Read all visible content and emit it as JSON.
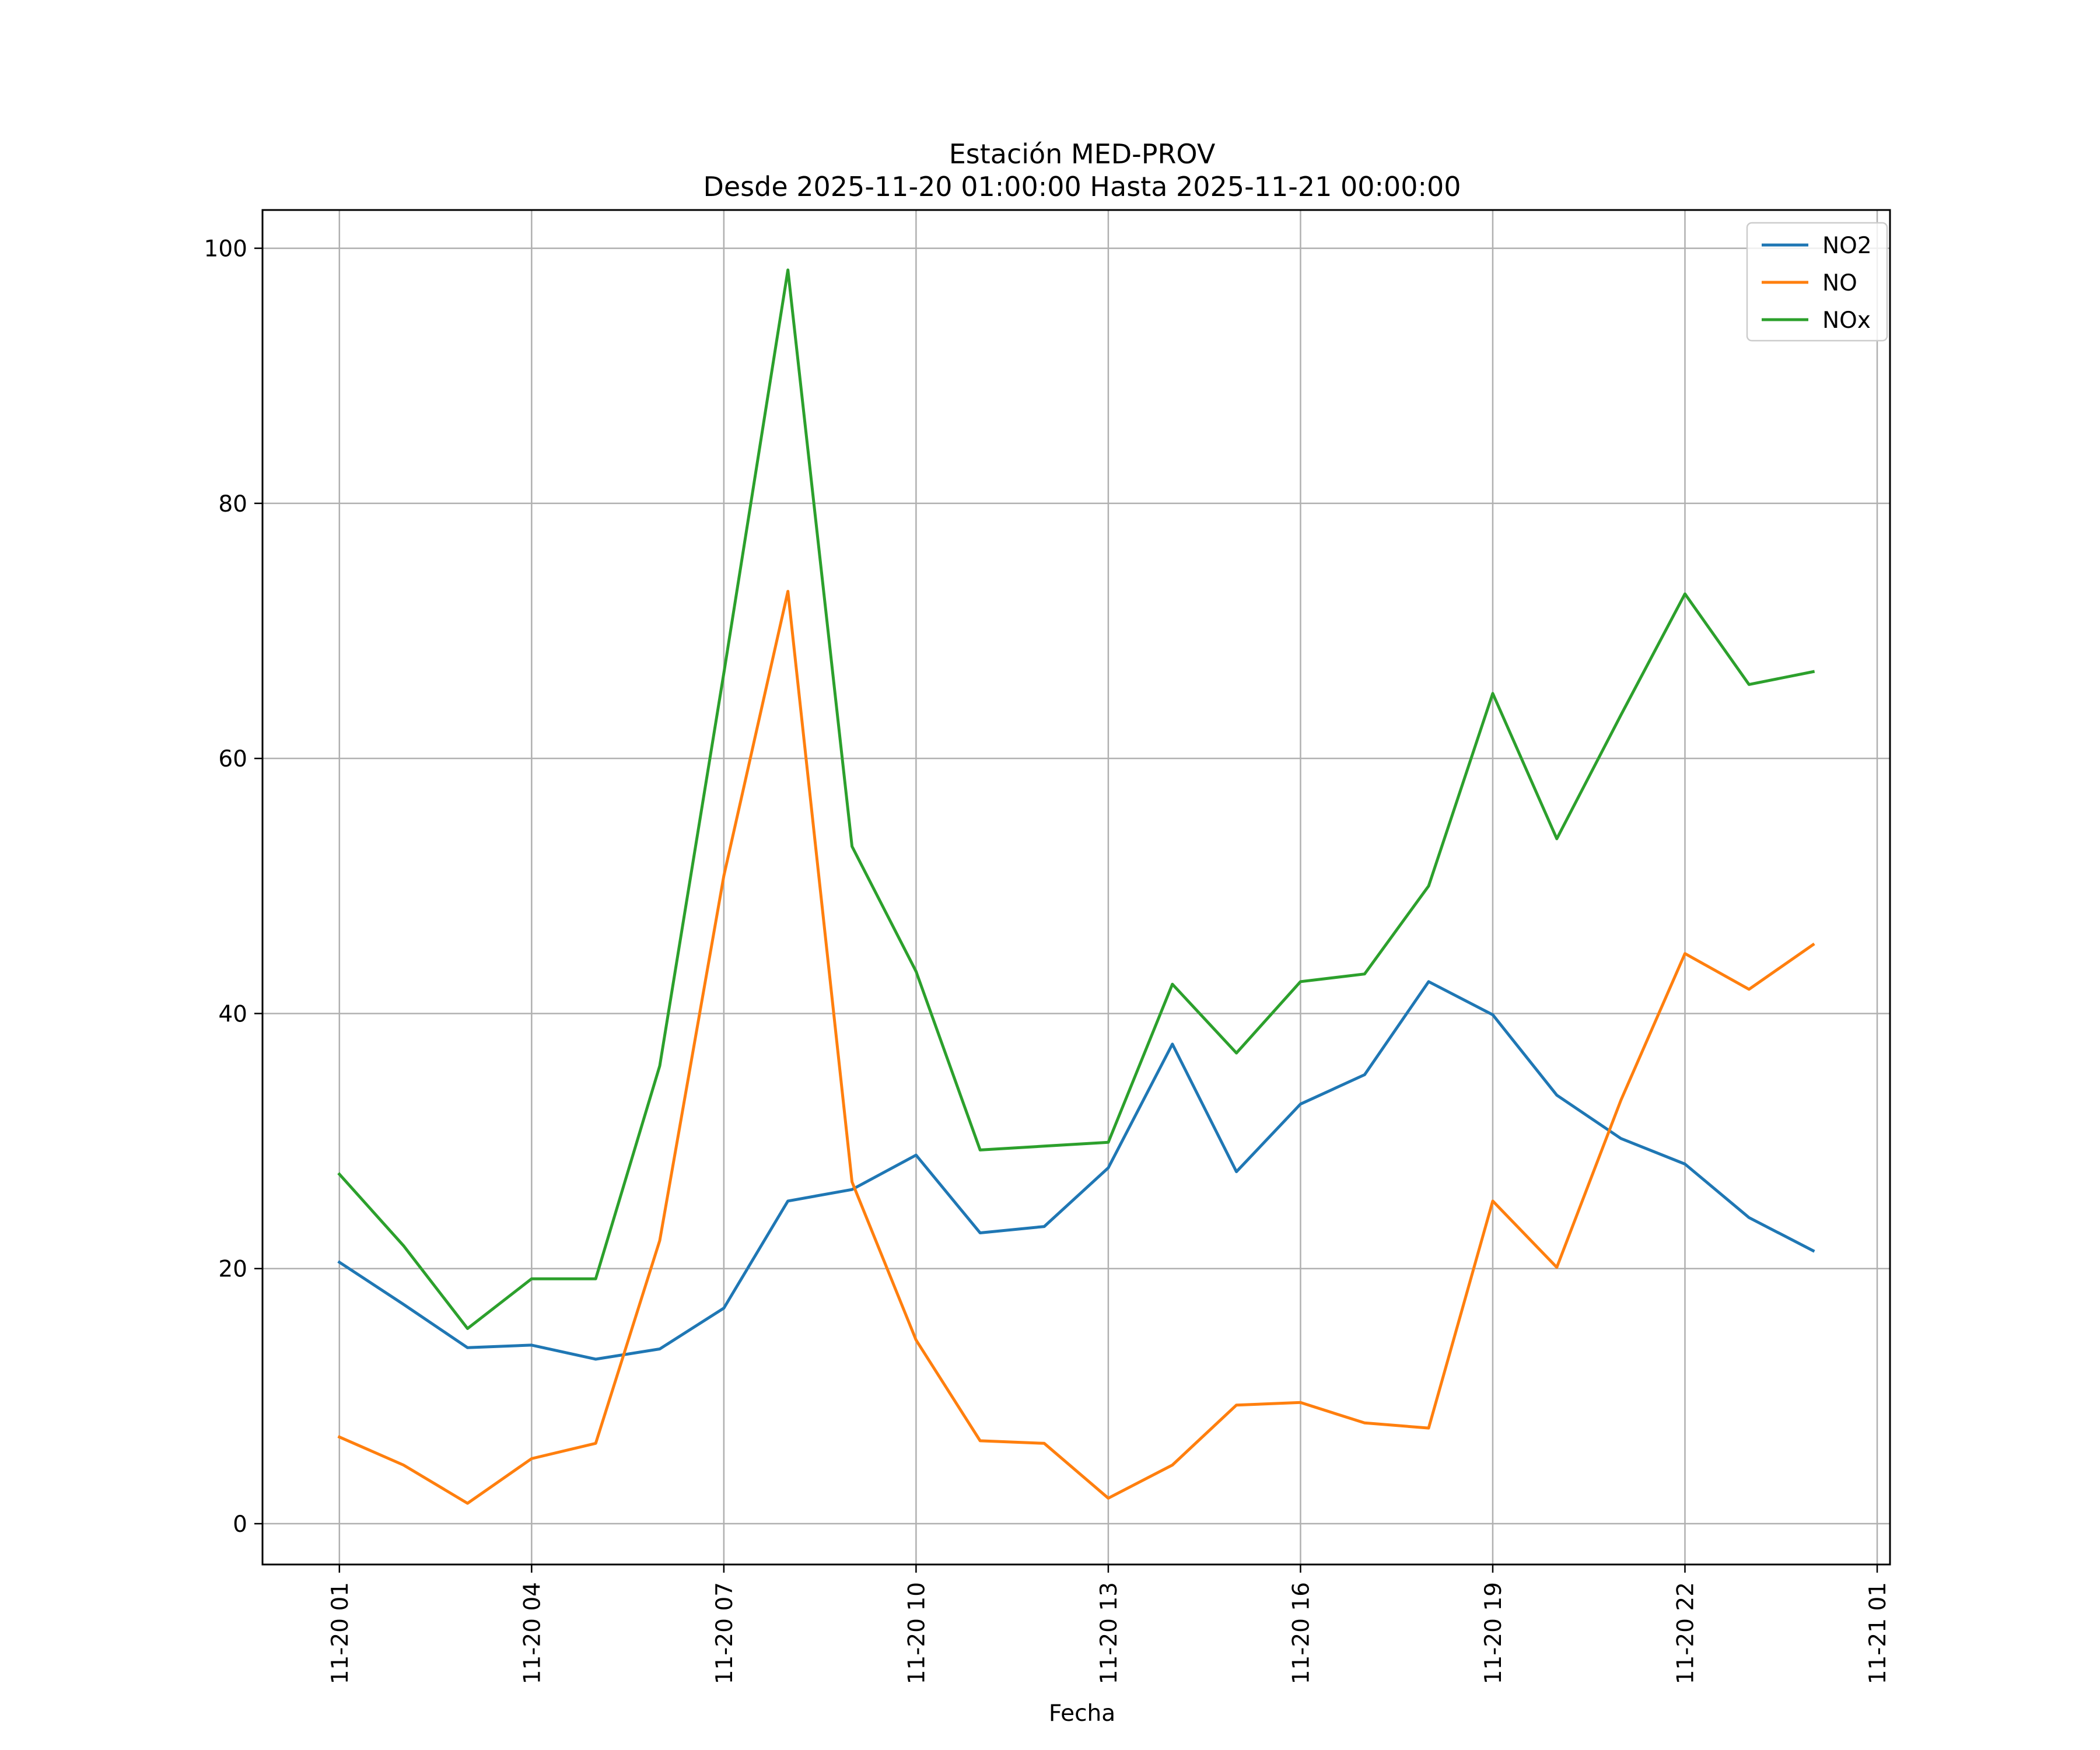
{
  "chart_data": {
    "type": "line",
    "title": "Estación MED-PROV",
    "subtitle": "Desde 2025-11-20 01:00:00 Hasta 2025-11-21 00:00:00",
    "xlabel": "Fecha",
    "ylabel": "",
    "grid": true,
    "legend_position": "top-right",
    "x": [
      1,
      2,
      3,
      4,
      5,
      6,
      7,
      8,
      9,
      10,
      11,
      12,
      13,
      14,
      15,
      16,
      17,
      18,
      19,
      20,
      21,
      22,
      23,
      24
    ],
    "xlim": [
      -0.2,
      25.2
    ],
    "ylim": [
      -3.2,
      103
    ],
    "x_ticks": [
      {
        "value": 1,
        "label": "11-20 01"
      },
      {
        "value": 4,
        "label": "11-20 04"
      },
      {
        "value": 7,
        "label": "11-20 07"
      },
      {
        "value": 10,
        "label": "11-20 10"
      },
      {
        "value": 13,
        "label": "11-20 13"
      },
      {
        "value": 16,
        "label": "11-20 16"
      },
      {
        "value": 19,
        "label": "11-20 19"
      },
      {
        "value": 22,
        "label": "11-20 22"
      },
      {
        "value": 25,
        "label": "11-21 01"
      }
    ],
    "y_ticks": [
      {
        "value": 0,
        "label": "0"
      },
      {
        "value": 20,
        "label": "20"
      },
      {
        "value": 40,
        "label": "40"
      },
      {
        "value": 60,
        "label": "60"
      },
      {
        "value": 80,
        "label": "80"
      },
      {
        "value": 100,
        "label": "100"
      }
    ],
    "series": [
      {
        "name": "NO2",
        "color": "#1f77b4",
        "values": [
          20.5,
          17.2,
          13.8,
          14.0,
          12.9,
          13.7,
          16.9,
          25.3,
          26.2,
          28.9,
          22.8,
          23.3,
          27.9,
          37.6,
          27.6,
          32.9,
          35.2,
          42.5,
          39.9,
          33.6,
          30.2,
          28.2,
          24.0,
          21.4
        ]
      },
      {
        "name": "NO",
        "color": "#ff7f0e",
        "values": [
          6.8,
          4.6,
          1.6,
          5.1,
          6.3,
          22.2,
          50.8,
          73.1,
          26.8,
          14.4,
          6.5,
          6.3,
          2.0,
          4.6,
          9.3,
          9.5,
          7.9,
          7.5,
          25.3,
          20.1,
          33.2,
          44.7,
          41.9,
          45.4
        ]
      },
      {
        "name": "NOx",
        "color": "#2ca02c",
        "values": [
          27.4,
          21.8,
          15.3,
          19.2,
          19.2,
          35.9,
          66.7,
          98.3,
          53.1,
          43.3,
          29.3,
          29.6,
          29.9,
          42.3,
          36.9,
          42.5,
          43.1,
          50.0,
          65.1,
          53.7,
          63.4,
          72.9,
          65.8,
          66.8
        ]
      }
    ]
  }
}
